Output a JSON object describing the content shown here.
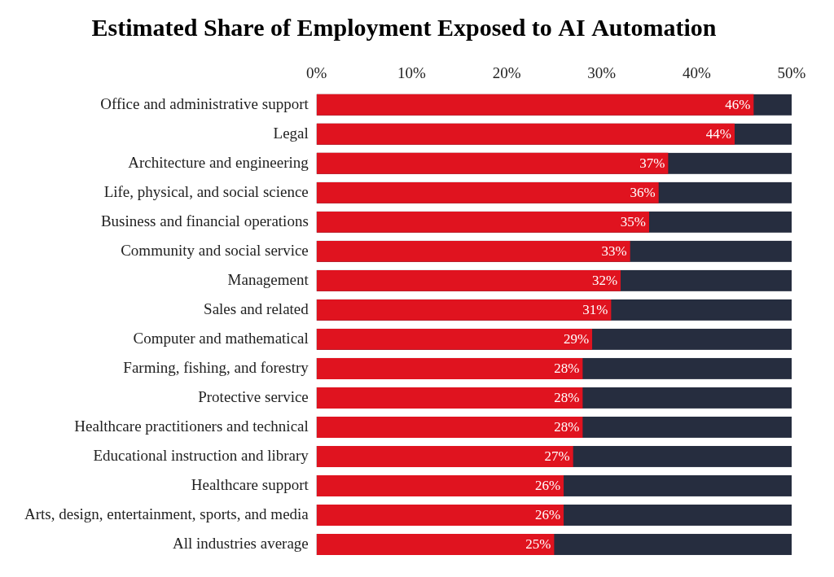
{
  "chart_data": {
    "type": "bar",
    "title": "Estimated Share of Employment Exposed to AI Automation",
    "orientation": "horizontal",
    "categories": [
      "Office and administrative support",
      "Legal",
      "Architecture and engineering",
      "Life, physical, and social science",
      "Business and financial operations",
      "Community and social service",
      "Management",
      "Sales and related",
      "Computer and mathematical",
      "Farming, fishing, and forestry",
      "Protective service",
      "Healthcare practitioners and technical",
      "Educational instruction and library",
      "Healthcare support",
      "Arts, design, entertainment, sports, and media",
      "All industries average"
    ],
    "values": [
      46,
      44,
      37,
      36,
      35,
      33,
      32,
      31,
      29,
      28,
      28,
      28,
      27,
      26,
      26,
      25
    ],
    "value_labels": [
      "46%",
      "44%",
      "37%",
      "36%",
      "35%",
      "33%",
      "32%",
      "31%",
      "29%",
      "28%",
      "28%",
      "28%",
      "27%",
      "26%",
      "26%",
      "25%"
    ],
    "color": "#e0131f",
    "xlim": [
      0,
      50
    ],
    "xticks": [
      {
        "value": 0,
        "label": "0%"
      },
      {
        "value": 10,
        "label": "10%"
      },
      {
        "value": 20,
        "label": "20%"
      },
      {
        "value": 30,
        "label": "30%"
      },
      {
        "value": 40,
        "label": "40%"
      },
      {
        "value": 50,
        "label": "50%"
      }
    ],
    "grid": false,
    "data_labels": true
  }
}
